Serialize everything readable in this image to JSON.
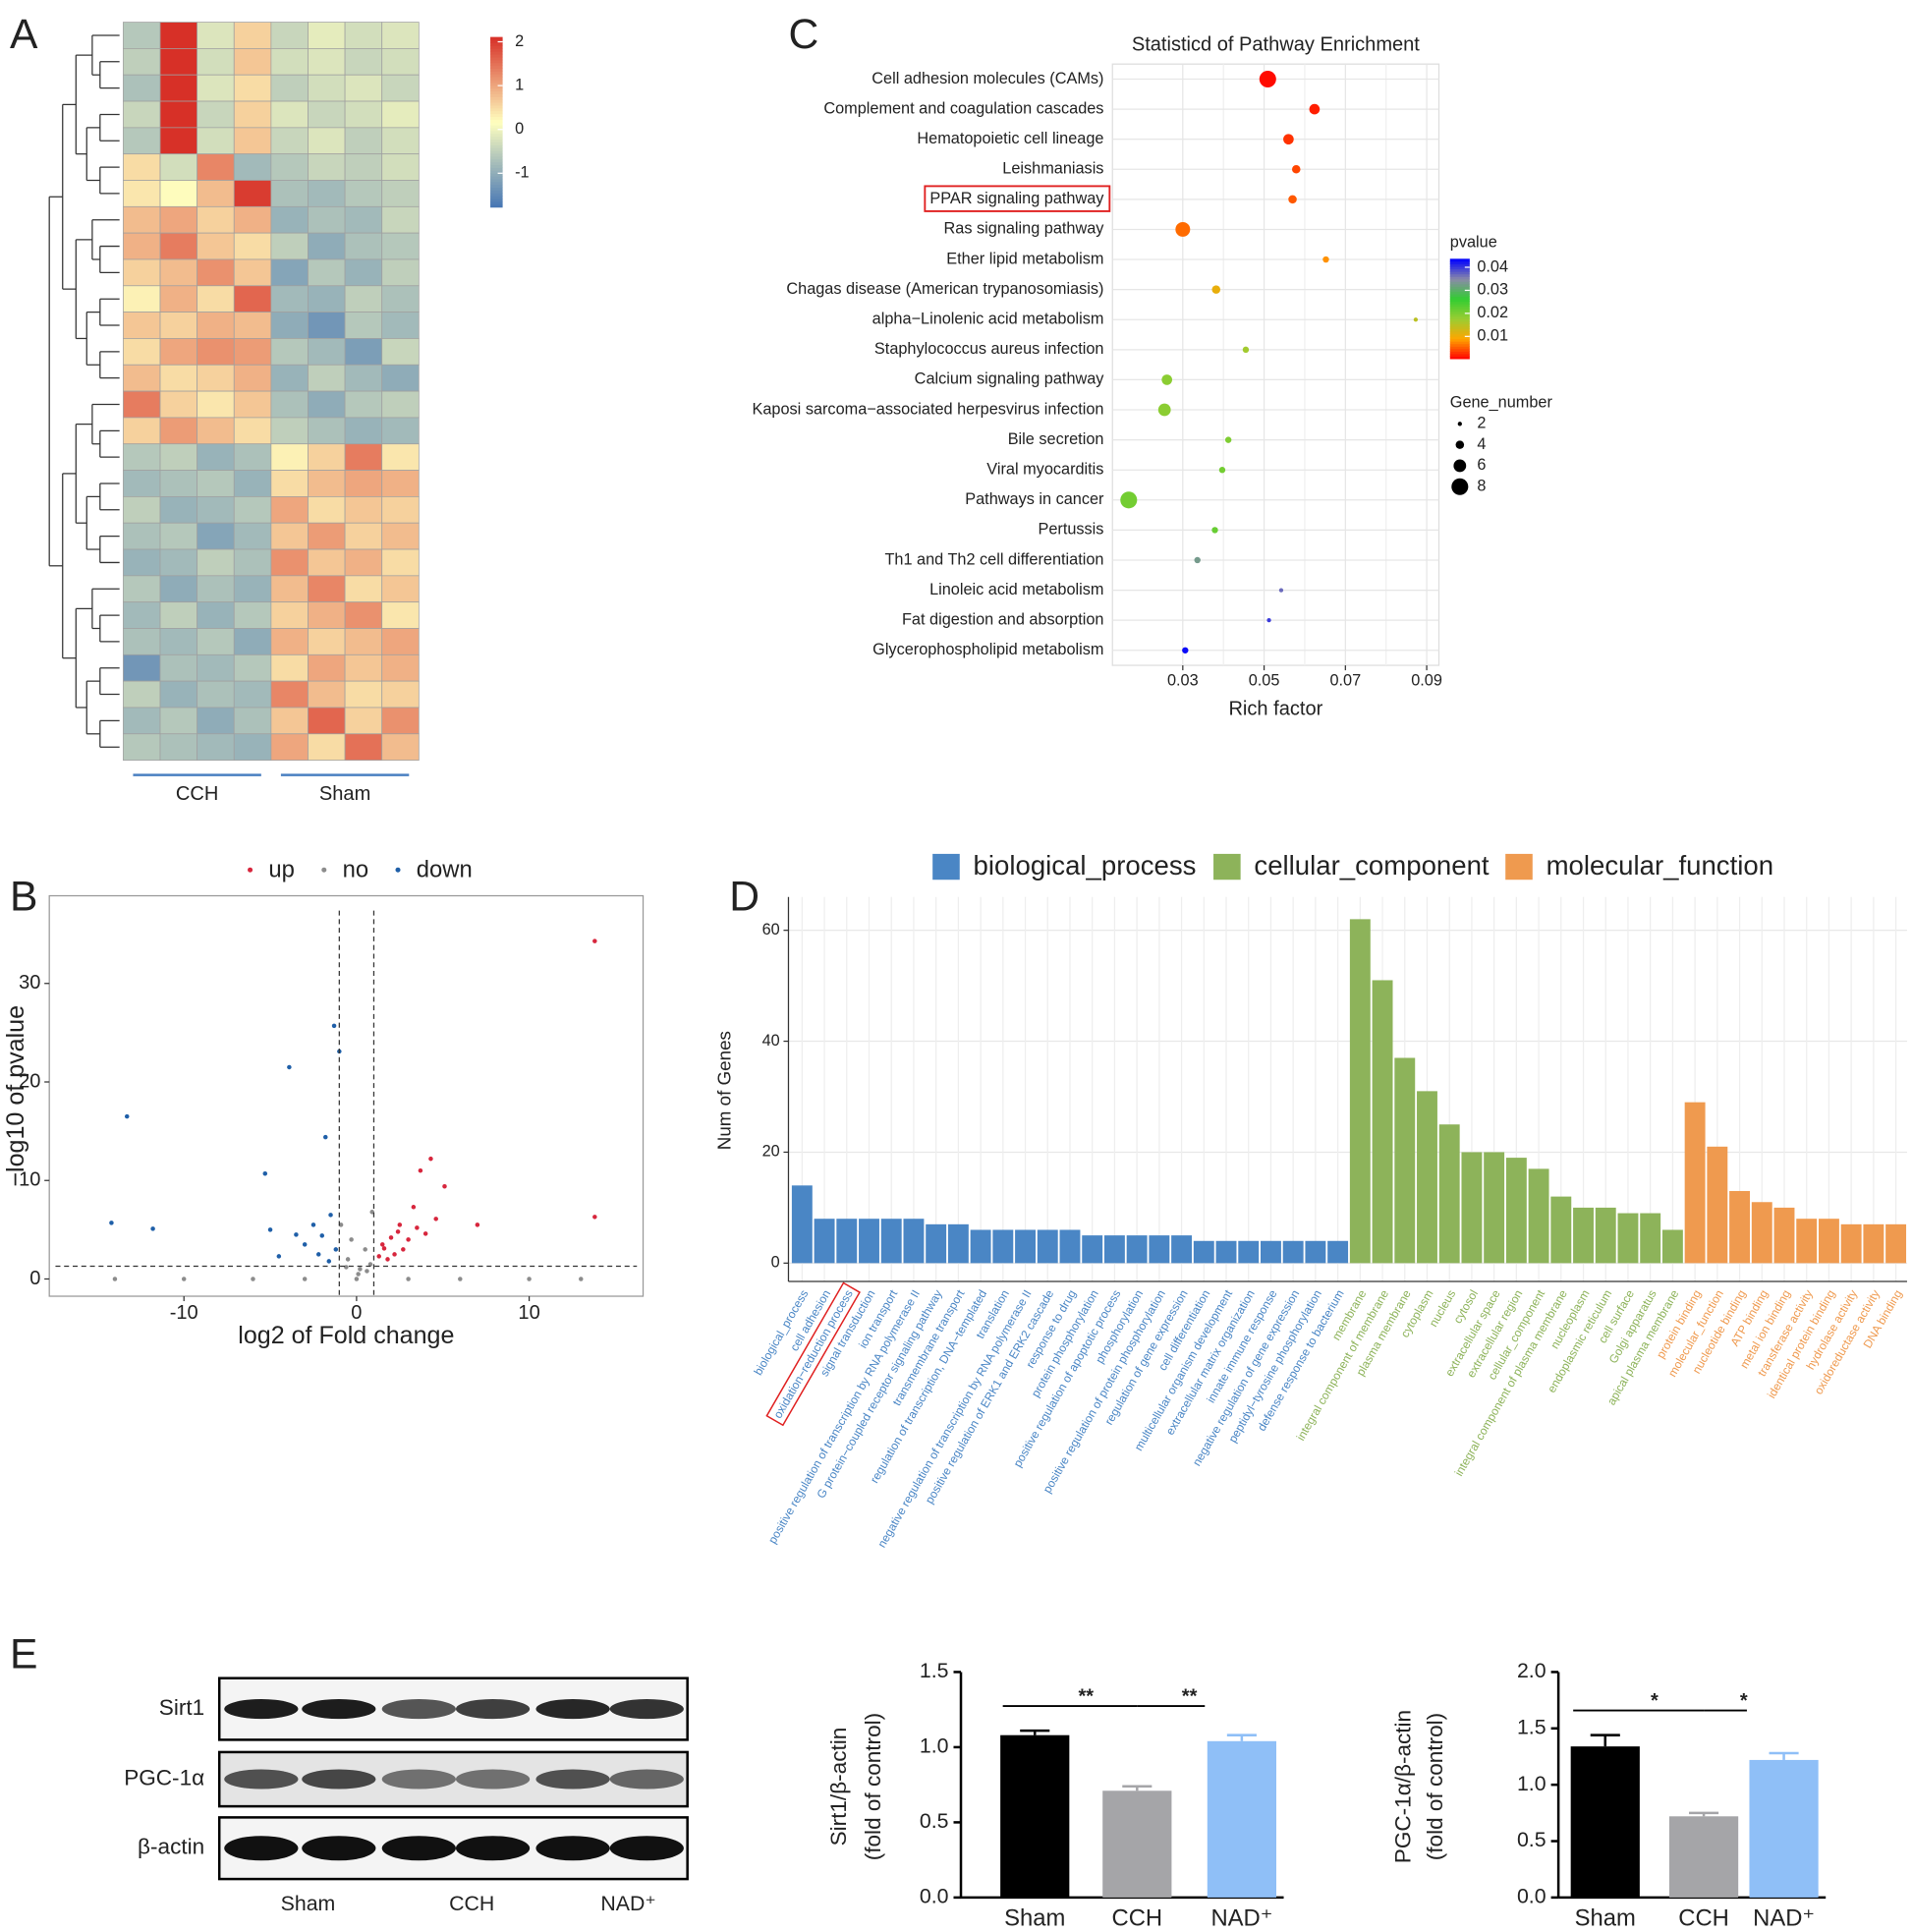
{
  "panel_labels": [
    "A",
    "B",
    "C",
    "D",
    "E"
  ],
  "western_blot": {
    "proteins": [
      "Sirt1",
      "PGC-1α",
      "β-actin"
    ],
    "groups": [
      "Sham",
      "CCH",
      "NAD⁺"
    ]
  },
  "chart_data": [
    {
      "type": "heatmap",
      "groups": [
        {
          "name": "CCH",
          "columns": 4
        },
        {
          "name": "Sham",
          "columns": 4
        }
      ],
      "values": [
        [
          -0.6,
          2.2,
          -0.2,
          0.6,
          -0.4,
          -0.1,
          -0.3,
          -0.2
        ],
        [
          -0.5,
          2.3,
          -0.3,
          0.7,
          -0.3,
          -0.2,
          -0.4,
          -0.3
        ],
        [
          -0.7,
          2.2,
          -0.2,
          0.5,
          -0.5,
          -0.3,
          -0.2,
          -0.4
        ],
        [
          -0.4,
          2.2,
          -0.4,
          0.6,
          -0.2,
          -0.4,
          -0.3,
          -0.1
        ],
        [
          -0.6,
          2.1,
          -0.3,
          0.7,
          -0.4,
          -0.2,
          -0.5,
          -0.3
        ],
        [
          0.5,
          -0.3,
          1.3,
          -0.8,
          -0.6,
          -0.4,
          -0.5,
          -0.3
        ],
        [
          0.4,
          0.2,
          0.8,
          2.0,
          -0.7,
          -0.8,
          -0.6,
          -0.5
        ],
        [
          0.8,
          1.0,
          0.6,
          0.9,
          -0.9,
          -0.7,
          -0.8,
          -0.4
        ],
        [
          0.9,
          1.4,
          0.7,
          0.5,
          -0.5,
          -1.0,
          -0.7,
          -0.6
        ],
        [
          0.6,
          0.8,
          1.2,
          0.7,
          -1.1,
          -0.6,
          -0.9,
          -0.5
        ],
        [
          0.3,
          0.9,
          0.5,
          1.6,
          -0.8,
          -0.9,
          -0.5,
          -0.7
        ],
        [
          0.7,
          0.6,
          0.9,
          0.8,
          -1.0,
          -1.3,
          -0.6,
          -0.8
        ],
        [
          0.5,
          1.0,
          1.2,
          1.1,
          -0.6,
          -0.8,
          -1.2,
          -0.4
        ],
        [
          0.8,
          0.5,
          0.6,
          0.9,
          -0.9,
          -0.5,
          -0.8,
          -1.0
        ],
        [
          1.4,
          0.6,
          0.4,
          0.7,
          -0.7,
          -1.0,
          -0.6,
          -0.5
        ],
        [
          0.6,
          1.1,
          0.8,
          0.5,
          -0.5,
          -0.7,
          -0.9,
          -0.8
        ],
        [
          -0.6,
          -0.5,
          -0.9,
          -0.7,
          0.3,
          0.6,
          1.4,
          0.4
        ],
        [
          -0.8,
          -0.7,
          -0.6,
          -0.9,
          0.5,
          0.8,
          1.0,
          0.9
        ],
        [
          -0.5,
          -0.9,
          -0.8,
          -0.6,
          1.0,
          0.5,
          0.7,
          0.6
        ],
        [
          -0.7,
          -0.6,
          -1.1,
          -0.8,
          0.7,
          1.1,
          0.6,
          0.8
        ],
        [
          -0.9,
          -0.8,
          -0.5,
          -0.7,
          1.2,
          0.7,
          0.9,
          0.5
        ],
        [
          -0.6,
          -1.0,
          -0.7,
          -0.9,
          0.8,
          1.3,
          0.5,
          0.7
        ],
        [
          -0.8,
          -0.5,
          -0.9,
          -0.6,
          0.6,
          0.9,
          1.2,
          0.4
        ],
        [
          -0.7,
          -0.8,
          -0.6,
          -1.0,
          0.9,
          0.6,
          0.8,
          1.0
        ],
        [
          -1.3,
          -0.7,
          -0.8,
          -0.6,
          0.5,
          1.0,
          0.7,
          0.9
        ],
        [
          -0.5,
          -0.9,
          -0.7,
          -0.8,
          1.3,
          0.8,
          0.5,
          0.6
        ],
        [
          -0.8,
          -0.6,
          -1.0,
          -0.7,
          0.7,
          1.6,
          0.6,
          1.2
        ],
        [
          -0.6,
          -0.7,
          -0.8,
          -0.9,
          1.0,
          0.5,
          1.5,
          0.8
        ]
      ],
      "zlim": [
        -1.77,
        2.11
      ],
      "zticks": [
        -1,
        0,
        1,
        2
      ],
      "colors": [
        "#4575b4",
        "#ffffbf",
        "#d73027"
      ]
    },
    {
      "type": "scatter",
      "xlabel": "log2 of Fold change",
      "ylabel": "−log10 of pvalue",
      "xlim": [
        -17.8,
        16.6
      ],
      "ylim": [
        -1.75,
        38.9
      ],
      "xticks": [
        -10,
        0,
        10
      ],
      "yticks": [
        0,
        10,
        20,
        30
      ],
      "thresholds": {
        "x": [
          -1,
          1
        ],
        "y": 1.3
      },
      "series": [
        {
          "name": "up",
          "color": "#d7263d",
          "x": [
            13.8,
            13.8,
            4.3,
            3.7,
            5.1,
            7,
            3.3,
            4.6,
            2.5,
            2,
            1.5,
            3,
            2.2,
            1.8,
            4,
            2.7,
            1.3,
            3.5,
            2.4,
            1.6
          ],
          "y": [
            34.3,
            6.3,
            12.2,
            11,
            9.4,
            5.5,
            7.3,
            6.1,
            5.5,
            4.2,
            3.5,
            4,
            2.5,
            2,
            4.6,
            3,
            2.3,
            5.2,
            4.8,
            3.1
          ]
        },
        {
          "name": "no",
          "color": "#8c8c8c",
          "x": [
            -14,
            -10,
            -6,
            -3,
            0,
            3,
            6,
            10,
            13,
            -0.5,
            0.5,
            0.2,
            -0.3,
            0.8,
            -0.9,
            0.9,
            0.1,
            0.6,
            -0.6
          ],
          "y": [
            0,
            0,
            0,
            0,
            0,
            0,
            0,
            0,
            0,
            2,
            3,
            1,
            4,
            1.5,
            5.5,
            6.8,
            0.5,
            0.8,
            1.2
          ]
        },
        {
          "name": "down",
          "color": "#1f5fa8",
          "x": [
            -13.3,
            -14.2,
            -11.8,
            -3.9,
            -1.3,
            -1,
            -1.8,
            -5.3,
            -5,
            -3.5,
            -2.5,
            -3,
            -2,
            -1.5,
            -1.2,
            -2.2,
            -4.5,
            -1.6
          ],
          "y": [
            16.5,
            5.7,
            5.1,
            21.5,
            25.7,
            23.1,
            14.4,
            10.7,
            5,
            4.5,
            5.5,
            3.5,
            4.4,
            6.5,
            3,
            2.5,
            2.3,
            1.8
          ]
        }
      ]
    },
    {
      "type": "bubble",
      "title": "Statisticd of Pathway Enrichment",
      "xlabel": "Rich factor",
      "categories": [
        "Cell adhesion molecules (CAMs)",
        "Complement and coagulation cascades",
        "Hematopoietic cell lineage",
        "Leishmaniasis",
        "PPAR signaling pathway",
        "Ras signaling pathway",
        "Ether lipid metabolism",
        "Chagas disease (American trypanosomiasis)",
        "alpha−Linolenic acid metabolism",
        "Staphylococcus aureus infection",
        "Calcium signaling pathway",
        "Kaposi sarcoma−associated herpesvirus infection",
        "Bile secretion",
        "Viral myocarditis",
        "Pathways in cancer",
        "Pertussis",
        "Th1 and Th2 cell differentiation",
        "Linoleic acid metabolism",
        "Fat digestion and absorption",
        "Glycerophospholipid metabolism"
      ],
      "values": [
        0.0509,
        0.0624,
        0.056,
        0.0579,
        0.057,
        0.03,
        0.0652,
        0.0382,
        0.0873,
        0.0455,
        0.0261,
        0.0255,
        0.0412,
        0.0397,
        0.0167,
        0.0379,
        0.0336,
        0.0542,
        0.0512,
        0.0306
      ],
      "sizes": [
        8,
        5,
        5,
        4,
        4,
        7,
        3,
        4,
        2,
        3,
        5,
        6,
        3,
        3,
        8,
        3,
        3,
        2,
        2,
        3
      ],
      "pvalues": [
        0.001,
        0.002,
        0.003,
        0.004,
        0.005,
        0.006,
        0.008,
        0.011,
        0.015,
        0.017,
        0.019,
        0.019,
        0.02,
        0.021,
        0.021,
        0.022,
        0.033,
        0.037,
        0.04,
        0.043
      ],
      "highlighted_category": 4,
      "xlim": [
        0.0127,
        0.093
      ],
      "xticks": [
        0.03,
        0.05,
        0.07,
        0.09
      ],
      "color_title": "pvalue",
      "plim": [
        0.0004,
        0.0437
      ],
      "pticks": [
        0.01,
        0.02,
        0.03,
        0.04
      ],
      "colors": [
        "#ff0000",
        "#ffa500",
        "#9acd32",
        "#32cd32",
        "#8a8aa8",
        "#0000ff"
      ],
      "size_title": "Gene_number",
      "size_ticks": [
        2,
        4,
        6,
        8
      ],
      "grid": true
    },
    {
      "type": "bar",
      "ylabel": "Num of Genes",
      "ylim": [
        -3.3,
        66
      ],
      "yticks": [
        0,
        20,
        40,
        60
      ],
      "grid": true,
      "highlight": {
        "series": 0,
        "index": 2
      },
      "series": [
        {
          "name": "biological_process",
          "color": "#4a86c5",
          "categories": [
            "biological_process",
            "cell adhesion",
            "oxidation−reduction process",
            "signal transduction",
            "ion transport",
            "positive regulation of transcription by RNA polymerase II",
            "G protein−coupled receptor signaling pathway",
            "transmembrane transport",
            "regulation of transcription, DNA−templated",
            "translation",
            "negative regulation of transcription by RNA polymerase II",
            "positive regulation of ERK1 and ERK2 cascade",
            "response to drug",
            "protein phosphorylation",
            "positive regulation of apoptotic process",
            "phosphorylation",
            "positive regulation of protein phosphorylation",
            "regulation of gene expression",
            "cell differentiation",
            "multicellular organism development",
            "extracellular matrix organization",
            "innate immune response",
            "negative regulation of gene expression",
            "peptidyl−tyrosine phosphorylation",
            "defense response to bacterium"
          ],
          "values": [
            14,
            8,
            8,
            8,
            8,
            8,
            7,
            7,
            6,
            6,
            6,
            6,
            6,
            5,
            5,
            5,
            5,
            5,
            4,
            4,
            4,
            4,
            4,
            4,
            4
          ]
        },
        {
          "name": "cellular_component",
          "color": "#8db35a",
          "categories": [
            "membrane",
            "integral component of membrane",
            "plasma membrane",
            "cytoplasm",
            "nucleus",
            "cytosol",
            "extracellular space",
            "extracellular region",
            "cellular_component",
            "integral component of plasma membrane",
            "nucleoplasm",
            "endoplasmic reticulum",
            "cell surface",
            "Golgi apparatus",
            "apical plasma membrane"
          ],
          "values": [
            62,
            51,
            37,
            31,
            25,
            20,
            20,
            19,
            17,
            12,
            10,
            10,
            9,
            9,
            6
          ]
        },
        {
          "name": "molecular_function",
          "color": "#ef9a4f",
          "categories": [
            "protein binding",
            "molecular_function",
            "nucleotide binding",
            "ATP binding",
            "metal ion binding",
            "transferase activity",
            "identical protein binding",
            "hydrolase activity",
            "oxidoreductase activity",
            "DNA binding"
          ],
          "values": [
            29,
            21,
            13,
            11,
            10,
            8,
            8,
            7,
            7,
            7
          ]
        }
      ]
    },
    {
      "type": "bar",
      "ylabel": [
        "Sirt1/β-actin",
        "(fold of control)"
      ],
      "categories": [
        "Sham",
        "CCH",
        "NAD⁺"
      ],
      "values": [
        1.08,
        0.71,
        1.04
      ],
      "errors": [
        0.03,
        0.03,
        0.04
      ],
      "colors": [
        "#000000",
        "#a5a5a8",
        "#8fbff7"
      ],
      "ylim": [
        0,
        1.5
      ],
      "yticks": [
        {
          "value": 0,
          "label": "0.0"
        },
        {
          "value": 0.5,
          "label": "0.5"
        },
        {
          "value": 1,
          "label": "1.0"
        },
        {
          "value": 1.5,
          "label": "1.5"
        }
      ],
      "significance": [
        {
          "from": 0,
          "to": 1,
          "label": "**"
        },
        {
          "from": 1,
          "to": 2,
          "label": "**"
        }
      ]
    },
    {
      "type": "bar",
      "ylabel": [
        "PGC-1α/β-actin",
        "(fold of control)"
      ],
      "categories": [
        "Sham",
        "CCH",
        "NAD⁺"
      ],
      "values": [
        1.34,
        0.72,
        1.22
      ],
      "errors": [
        0.1,
        0.03,
        0.06
      ],
      "colors": [
        "#000000",
        "#a5a5a8",
        "#8fbff7"
      ],
      "ylim": [
        0,
        2
      ],
      "yticks": [
        {
          "value": 0,
          "label": "0.0"
        },
        {
          "value": 0.5,
          "label": "0.5"
        },
        {
          "value": 1,
          "label": "1.0"
        },
        {
          "value": 1.5,
          "label": "1.5"
        },
        {
          "value": 2,
          "label": "2.0"
        }
      ],
      "significance": [
        {
          "from": 0,
          "to": 1,
          "label": "*"
        },
        {
          "from": 1,
          "to": 2,
          "label": "*"
        }
      ]
    }
  ]
}
